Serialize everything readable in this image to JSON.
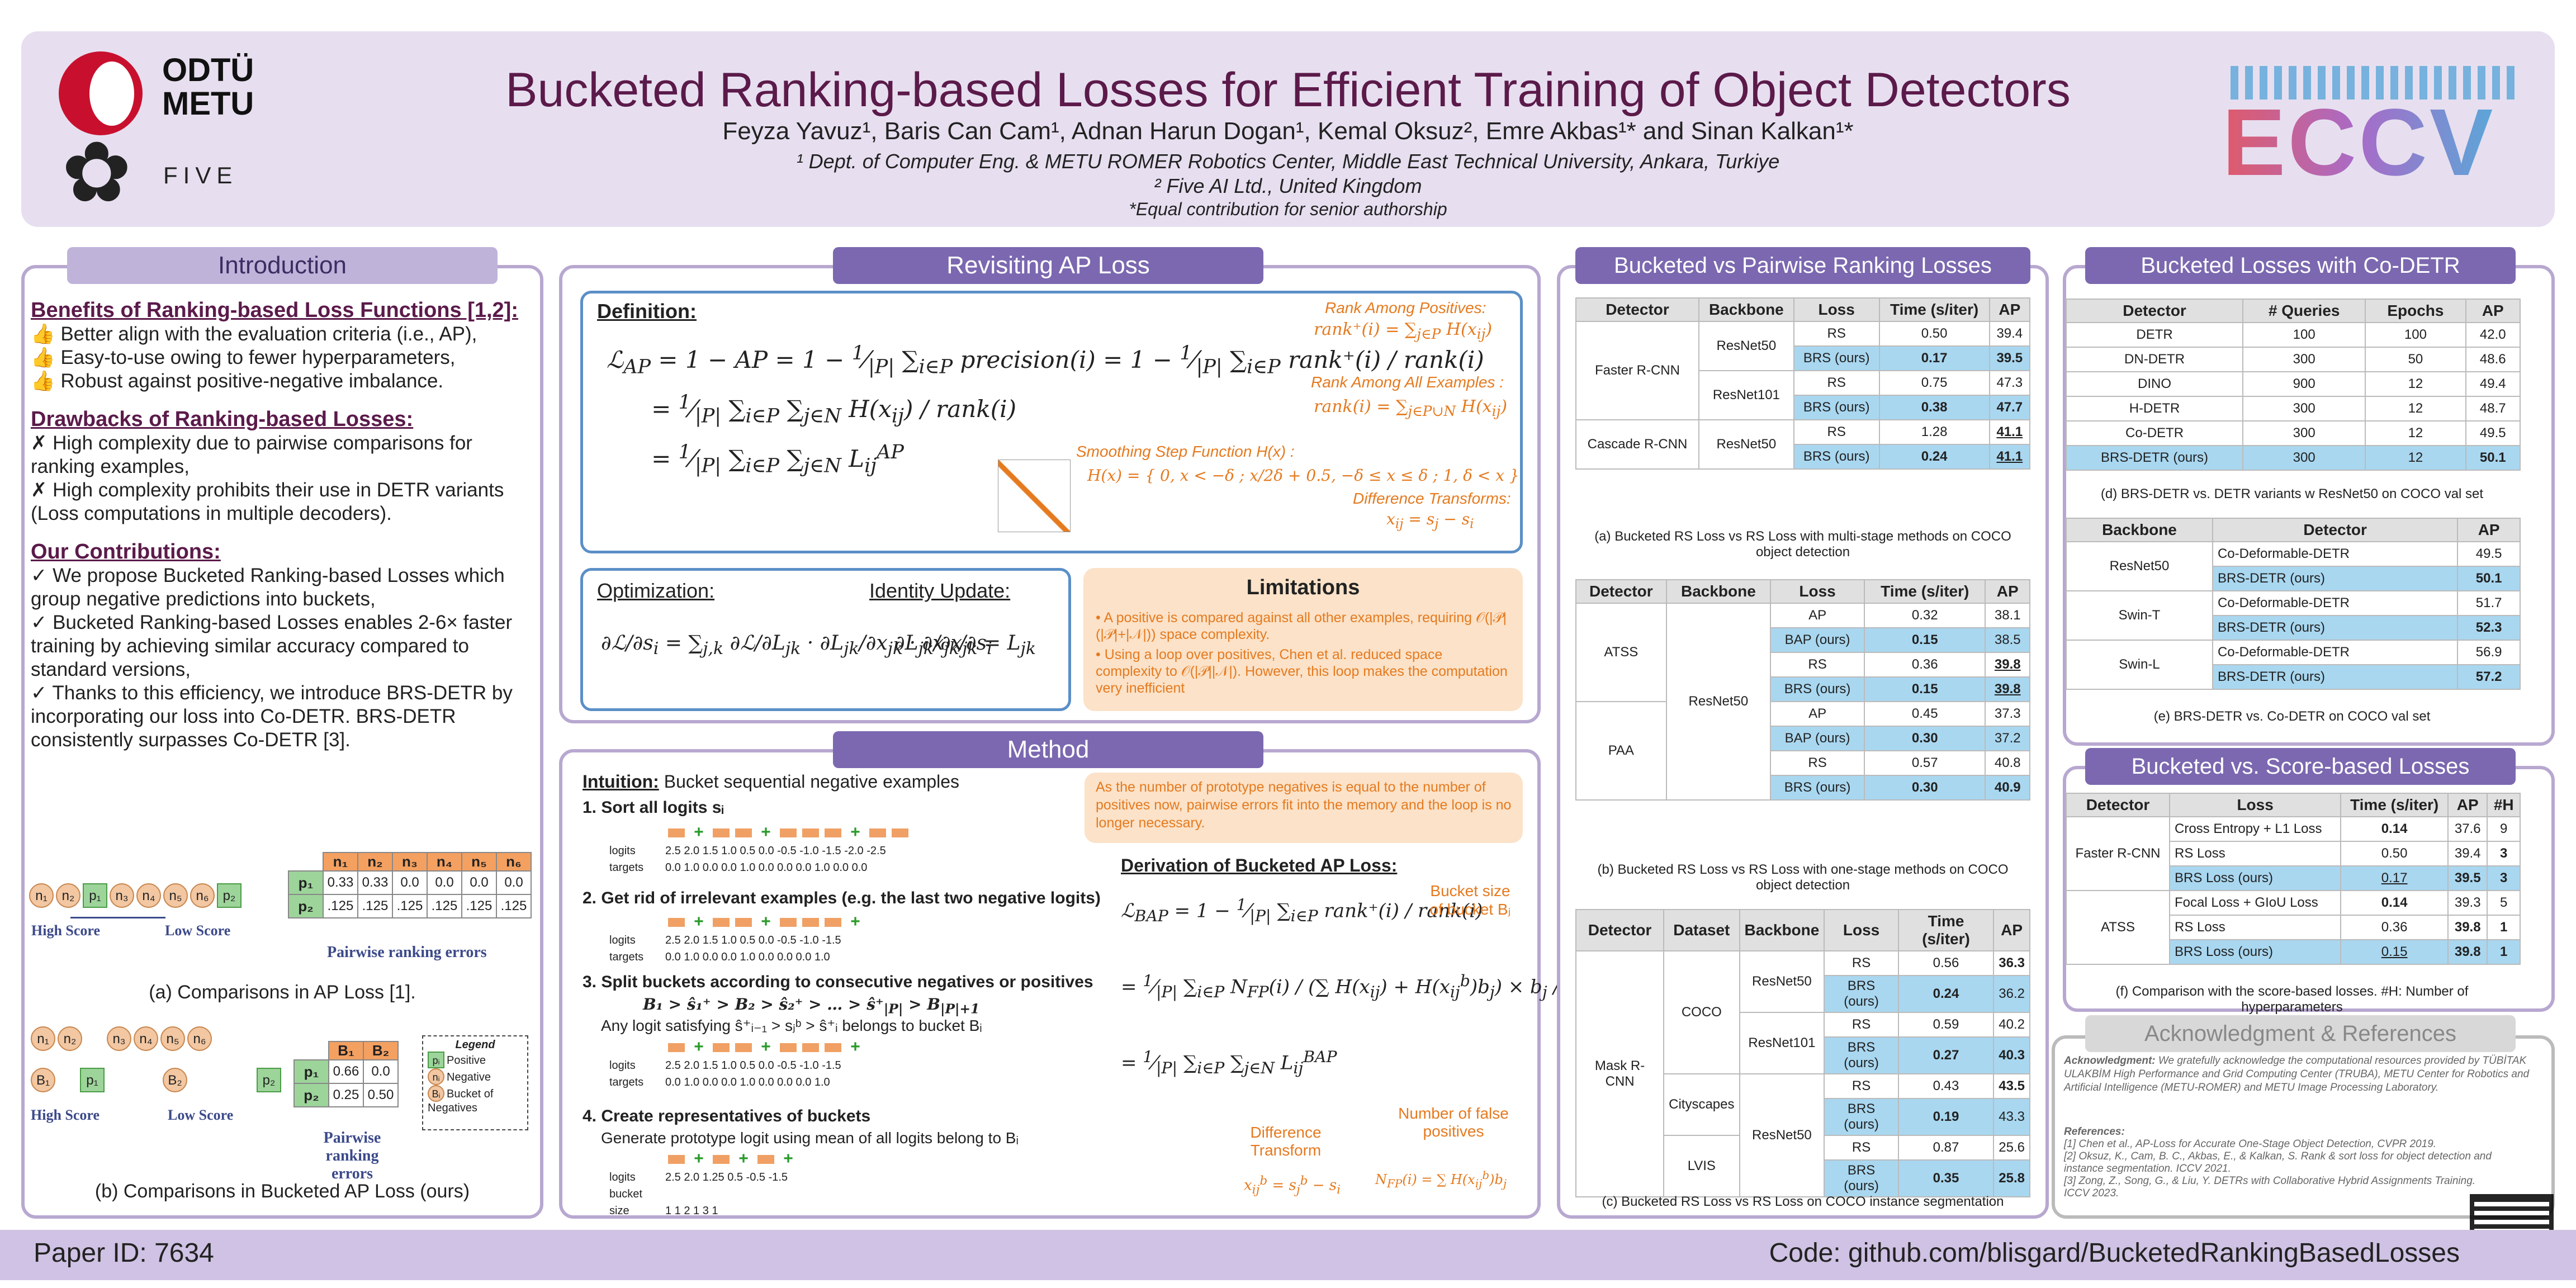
{
  "header": {
    "title": "Bucketed Ranking-based Losses for Efficient Training of Object Detectors",
    "authors": "Feyza Yavuz¹, Baris Can Cam¹, Adnan Harun Dogan¹, Kemal Oksuz², Emre Akbas¹* and Sinan Kalkan¹*",
    "affil1": "¹ Dept. of Computer Eng. & METU ROMER Robotics Center, Middle East Technical University, Ankara, Turkiye",
    "affil2": "² Five AI Ltd., United Kingdom",
    "affil3": "*Equal contribution for senior authorship",
    "logo_odtu": "ODTÜ",
    "logo_metu": "METU",
    "logo_five": "FIVE",
    "logo_eccv": "ECCV"
  },
  "intro": {
    "title": "Introduction",
    "benefits_heading": "Benefits of Ranking-based Loss Functions [1,2]:",
    "benefits": [
      "Better align with the evaluation criteria (i.e., AP),",
      "Easy-to-use owing to fewer hyperparameters,",
      "Robust against positive-negative imbalance."
    ],
    "drawbacks_heading": "Drawbacks of Ranking-based Losses:",
    "drawbacks": [
      "High complexity due to pairwise comparisons for ranking examples,",
      "High complexity prohibits their use in DETR variants (Loss computations in multiple decoders)."
    ],
    "contrib_heading": "Our Contributions:",
    "contribs": [
      "We propose Bucketed Ranking-based Losses which group negative predictions into buckets,",
      "Bucketed Ranking-based Losses enables 2-6× faster training by achieving similar accuracy compared to standard versions,",
      "Thanks to this efficiency, we introduce BRS-DETR by incorporating our loss into Co-DETR. BRS-DETR consistently surpasses Co-DETR [3]."
    ],
    "high_score": "High Score",
    "low_score": "Low Score",
    "pairwise_errors": "Pairwise ranking errors",
    "pairwise_errors2": "Pairwise ranking errors",
    "caption_a": "(a) Comparisons in AP Loss [1].",
    "caption_b": "(b) Comparisons in Bucketed AP Loss (ours)",
    "legend_title": "Legend",
    "legend": [
      "Positive",
      "Negative",
      "Bucket of Negatives"
    ],
    "mat_a_cols": [
      "n1",
      "n2",
      "n3",
      "n4",
      "n5",
      "n6"
    ],
    "mat_a": [
      [
        "p1",
        "0.33",
        "0.33",
        "0.0",
        "0.0",
        "0.0",
        "0.0"
      ],
      [
        "p2",
        ".125",
        ".125",
        ".125",
        ".125",
        ".125",
        ".125"
      ]
    ],
    "mat_b_cols": [
      "B1",
      "B2"
    ],
    "mat_b": [
      [
        "p1",
        "0.66",
        "0.0"
      ],
      [
        "p2",
        "0.25",
        "0.50"
      ]
    ]
  },
  "ap": {
    "title": "Revisiting AP Loss",
    "definition": "Definition:",
    "rank_pos": "Rank Among Positives:",
    "rank_all": "Rank Among All Examples :",
    "smooth": "Smoothing Step Function H(x) :",
    "diff": "Difference Transforms:",
    "optimization": "Optimization:",
    "identity": "Identity Update:",
    "limitations": "Limitations",
    "lim1": "A positive is compared against all other examples, requiring 𝒪(|𝒫|(|𝒫|+|𝒩|)) space complexity.",
    "lim2": "Using a loop over positives, Chen et al. reduced space complexity to 𝒪(|𝒫||𝒩|). However, this loop makes the computation very inefficient"
  },
  "method": {
    "title": "Method",
    "intuition": "Intuition:",
    "intuition_text": " Bucket sequential negative examples",
    "step1": "1. Sort all logits sᵢ",
    "step2": "2. Get rid of irrelevant examples (e.g. the last two negative logits)",
    "step3": "3. Split buckets according to consecutive negatives or positives",
    "step3b": "Any logit satisfying ŝ⁺ᵢ₋₁ > sⱼᵇ > ŝ⁺ᵢ belongs to bucket Bᵢ",
    "step4": "4. Create representatives of buckets",
    "step4b": "Generate prototype logit using mean of all logits belong to Bᵢ",
    "logits": "logits",
    "targets": "targets",
    "bucket_size": "bucket size",
    "row1_logits": "2.5 2.0 1.5 1.0 0.5 0.0 -0.5 -1.0 -1.5 -2.0 -2.5",
    "row1_targets": "0.0 1.0 0.0 0.0 1.0 0.0 0.0 0.0 1.0 0.0 0.0",
    "row2_logits": "2.5 2.0 1.5 1.0 0.5 0.0 -0.5 -1.0 -1.5",
    "row2_targets": "0.0 1.0 0.0 0.0 1.0 0.0 0.0 0.0 1.0",
    "row4_logits": "2.5  2.0  1.25  0.5  -0.5  -1.5",
    "row4_sizes": "1  1  2  1  3  1",
    "note": "As the number of prototype negatives is equal to the number of positives now, pairwise errors fit into the memory and the loop is no longer necessary.",
    "derivation": "Derivation of Bucketed AP Loss:",
    "bucket_size_lbl": "Bucket size of bucket Bⱼ",
    "diff_lbl": "Difference Transform",
    "num_fp": "Number of false positives"
  },
  "pairwise": {
    "title": "Bucketed vs Pairwise Ranking Losses",
    "headers_a": [
      "Detector",
      "Backbone",
      "Loss",
      "Time (s/iter)",
      "AP"
    ],
    "caption_a": "(a) Bucketed RS Loss vs RS Loss with multi-stage methods on COCO object detection",
    "rows_a": [
      [
        "Faster R-CNN",
        "ResNet50",
        "RS",
        "0.50",
        "39.4"
      ],
      [
        "",
        "",
        "BRS (ours)",
        "0.17",
        "39.5"
      ],
      [
        "",
        "ResNet101",
        "RS",
        "0.75",
        "47.3"
      ],
      [
        "",
        "",
        "BRS (ours)",
        "0.38",
        "47.7"
      ],
      [
        "Cascade R-CNN",
        "ResNet50",
        "RS",
        "1.28",
        "41.1"
      ],
      [
        "",
        "",
        "BRS (ours)",
        "0.24",
        "41.1"
      ]
    ],
    "headers_b": [
      "Detector",
      "Backbone",
      "Loss",
      "Time (s/iter)",
      "AP"
    ],
    "caption_b": "(b) Bucketed RS Loss vs RS Loss with one-stage methods on COCO object detection",
    "rows_b": [
      [
        "ATSS",
        "ResNet50",
        "AP",
        "0.32",
        "38.1"
      ],
      [
        "",
        "",
        "BAP (ours)",
        "0.15",
        "38.5"
      ],
      [
        "",
        "",
        "RS",
        "0.36",
        "39.8"
      ],
      [
        "",
        "",
        "BRS (ours)",
        "0.15",
        "39.8"
      ],
      [
        "PAA",
        "",
        "AP",
        "0.45",
        "37.3"
      ],
      [
        "",
        "",
        "BAP (ours)",
        "0.30",
        "37.2"
      ],
      [
        "",
        "",
        "RS",
        "0.57",
        "40.8"
      ],
      [
        "",
        "",
        "BRS (ours)",
        "0.30",
        "40.9"
      ]
    ],
    "headers_c": [
      "Detector",
      "Dataset",
      "Backbone",
      "Loss",
      "Time (s/iter)",
      "AP"
    ],
    "caption_c": "(c) Bucketed RS Loss vs RS Loss on COCO instance segmentation",
    "rows_c": [
      [
        "Mask R-CNN",
        "COCO",
        "ResNet50",
        "RS",
        "0.56",
        "36.3"
      ],
      [
        "",
        "",
        "",
        "BRS (ours)",
        "0.24",
        "36.2"
      ],
      [
        "",
        "",
        "ResNet101",
        "RS",
        "0.59",
        "40.2"
      ],
      [
        "",
        "",
        "",
        "BRS (ours)",
        "0.27",
        "40.3"
      ],
      [
        "",
        "Cityscapes",
        "ResNet50",
        "RS",
        "0.43",
        "43.5"
      ],
      [
        "",
        "",
        "",
        "BRS (ours)",
        "0.19",
        "43.3"
      ],
      [
        "",
        "LVIS",
        "",
        "RS",
        "0.87",
        "25.6"
      ],
      [
        "",
        "",
        "",
        "BRS (ours)",
        "0.35",
        "25.8"
      ]
    ]
  },
  "codetr": {
    "title": "Bucketed Losses with Co-DETR",
    "headers_d": [
      "Detector",
      "# Queries",
      "Epochs",
      "AP"
    ],
    "rows_d": [
      [
        "DETR",
        "100",
        "100",
        "42.0"
      ],
      [
        "DN-DETR",
        "300",
        "50",
        "48.6"
      ],
      [
        "DINO",
        "900",
        "12",
        "49.4"
      ],
      [
        "H-DETR",
        "300",
        "12",
        "48.7"
      ],
      [
        "Co-DETR",
        "300",
        "12",
        "49.5"
      ],
      [
        "BRS-DETR (ours)",
        "300",
        "12",
        "50.1"
      ]
    ],
    "caption_d": "(d) BRS-DETR vs. DETR variants w ResNet50 on COCO val set",
    "headers_e": [
      "Backbone",
      "Detector",
      "AP"
    ],
    "rows_e": [
      [
        "ResNet50",
        "Co-Deformable-DETR",
        "49.5"
      ],
      [
        "",
        "BRS-DETR (ours)",
        "50.1"
      ],
      [
        "Swin-T",
        "Co-Deformable-DETR",
        "51.7"
      ],
      [
        "",
        "BRS-DETR (ours)",
        "52.3"
      ],
      [
        "Swin-L",
        "Co-Deformable-DETR",
        "56.9"
      ],
      [
        "",
        "BRS-DETR (ours)",
        "57.2"
      ]
    ],
    "caption_e": "(e) BRS-DETR vs. Co-DETR on COCO val set"
  },
  "score": {
    "title": "Bucketed vs. Score-based Losses",
    "headers_f": [
      "Detector",
      "Loss",
      "Time (s/iter)",
      "AP",
      "#H"
    ],
    "rows_f": [
      [
        "Faster R-CNN",
        "Cross Entropy + L1 Loss",
        "0.14",
        "37.6",
        "9"
      ],
      [
        "",
        "RS Loss",
        "0.50",
        "39.4",
        "3"
      ],
      [
        "",
        "BRS Loss (ours)",
        "0.17",
        "39.5",
        "3"
      ],
      [
        "ATSS",
        "Focal Loss + GIoU Loss",
        "0.14",
        "39.3",
        "5"
      ],
      [
        "",
        "RS Loss",
        "0.36",
        "39.8",
        "1"
      ],
      [
        "",
        "BRS Loss (ours)",
        "0.15",
        "39.8",
        "1"
      ]
    ],
    "caption_f": "(f) Comparison with the score-based losses. #H: Number of hyperparameters"
  },
  "ack": {
    "title": "Acknowledgment & References",
    "ack_label": "Acknowledgment:",
    "ack_text": "We gratefully acknowledge the computational resources provided by TÜBİTAK ULAKBİM High Performance and Grid Computing Center (TRUBA), METU Center for Robotics and Artificial Intelligence (METU-ROMER) and METU Image Processing Laboratory.",
    "refs_label": "References:",
    "refs": [
      "[1] Chen et al., AP-Loss for Accurate One-Stage Object Detection, CVPR 2019.",
      "[2] Oksuz, K., Cam, B. C., Akbas, E., & Kalkan, S. Rank & sort loss for object detection and instance segmentation. ICCV 2021.",
      "[3] Zong, Z., Song, G., & Liu, Y. DETRs with Collaborative Hybrid Assignments Training. ICCV 2023."
    ]
  },
  "footer": {
    "paper_id": "Paper ID: 7634",
    "code": "Code: github.com/blisgard/BucketedRankingBasedLosses"
  },
  "colors": {
    "accent": "#7b68b0",
    "title": "#5b1a4a",
    "highlight": "#a9d7f0",
    "orange": "#e57a1f"
  }
}
